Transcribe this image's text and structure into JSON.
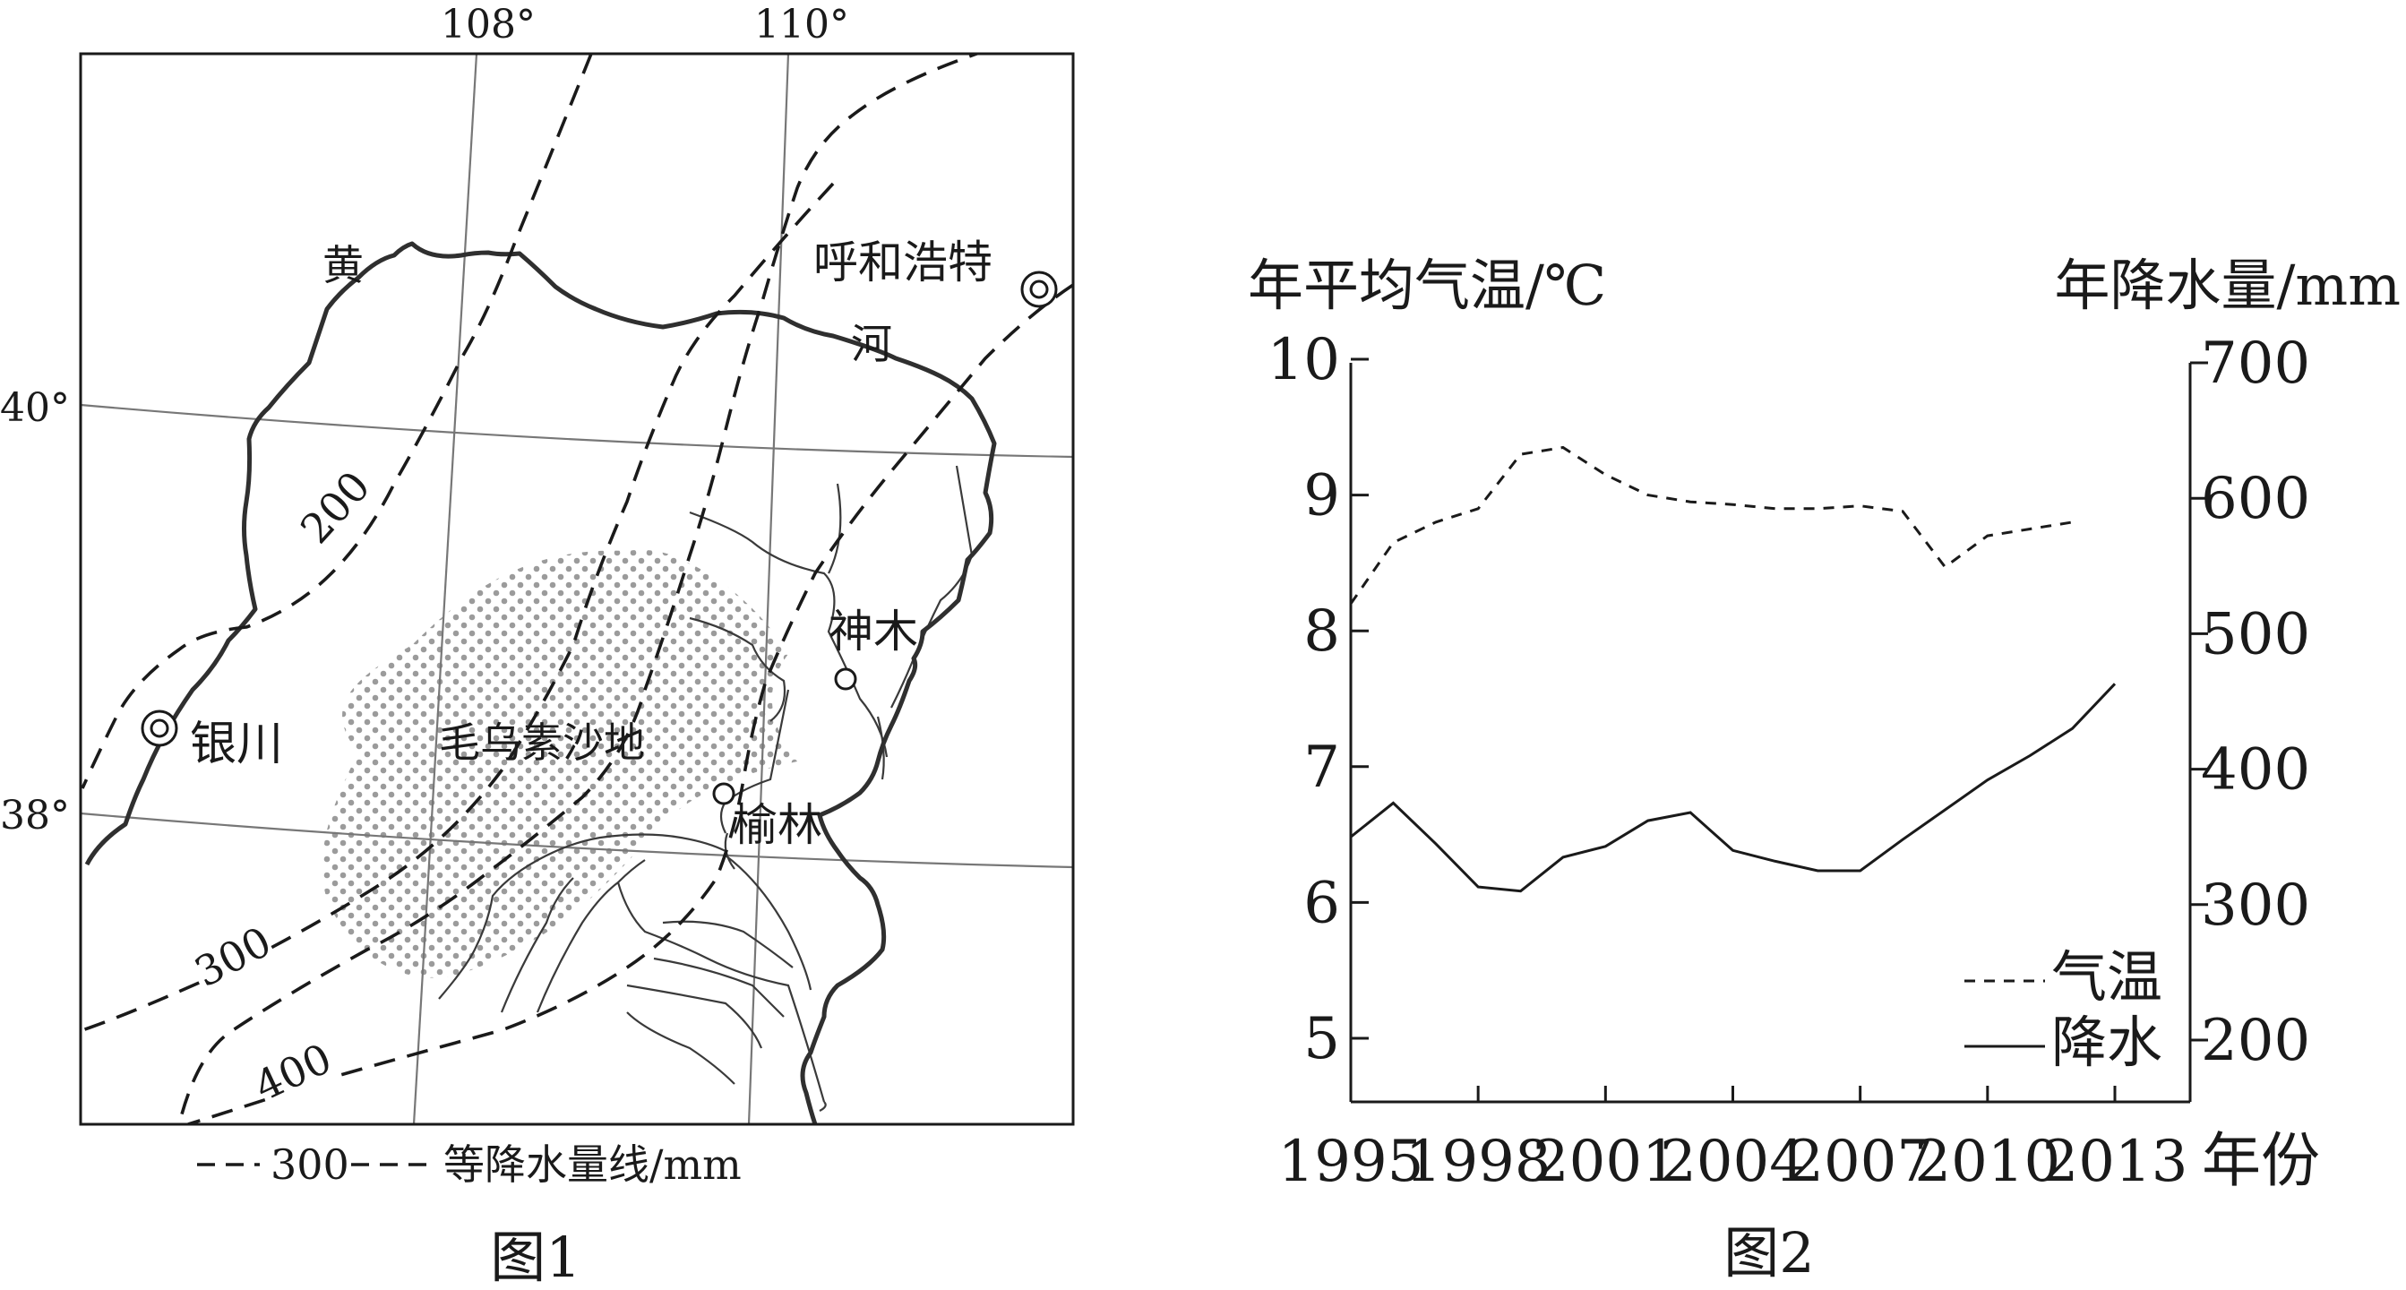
{
  "figure1": {
    "caption": "图1",
    "longitude_labels": [
      "108°",
      "110°"
    ],
    "latitude_labels": [
      "40°",
      "38°"
    ],
    "river_labels": [
      "黄",
      "河"
    ],
    "cities": {
      "huhehaote": "呼和浩特",
      "yinchuan": "银川",
      "shenmu": "神木",
      "yulin": "榆林"
    },
    "desert_label": "毛乌素沙地",
    "isohyet_labels": [
      "200",
      "300",
      "400"
    ],
    "legend": {
      "sample_value": "300",
      "text": "等降水量线/mm"
    }
  },
  "figure2": {
    "caption": "图2",
    "left_axis_title": "年平均气温/℃",
    "right_axis_title": "年降水量/mm",
    "x_axis_suffix": "年份",
    "legend": {
      "temperature": "气温",
      "precipitation": "降水"
    }
  },
  "chart_data": {
    "type": "line",
    "x": [
      1995,
      1996,
      1997,
      1998,
      1999,
      2000,
      2001,
      2002,
      2003,
      2004,
      2005,
      2006,
      2007,
      2008,
      2009,
      2010,
      2011,
      2012,
      2013
    ],
    "x_ticks": [
      1995,
      1998,
      2001,
      2004,
      2007,
      2010,
      2013
    ],
    "y_left": {
      "ticks": [
        5,
        6,
        7,
        8,
        9,
        10
      ],
      "range": [
        4.6,
        10
      ]
    },
    "y_right": {
      "ticks": [
        200,
        300,
        400,
        500,
        600,
        700
      ],
      "range": [
        160,
        700
      ]
    },
    "series": [
      {
        "name": "气温",
        "axis": "left",
        "style": "dashed",
        "values": [
          8.2,
          8.65,
          8.8,
          8.9,
          9.3,
          9.35,
          9.15,
          9.0,
          8.95,
          8.93,
          8.9,
          8.9,
          8.92,
          8.88,
          8.47,
          8.7,
          8.75,
          8.8,
          null
        ]
      },
      {
        "name": "降水",
        "axis": "right",
        "style": "solid",
        "values": [
          350,
          375,
          345,
          313,
          310,
          335,
          343,
          362,
          368,
          340,
          332,
          325,
          325,
          348,
          370,
          392,
          410,
          430,
          463
        ]
      }
    ]
  }
}
